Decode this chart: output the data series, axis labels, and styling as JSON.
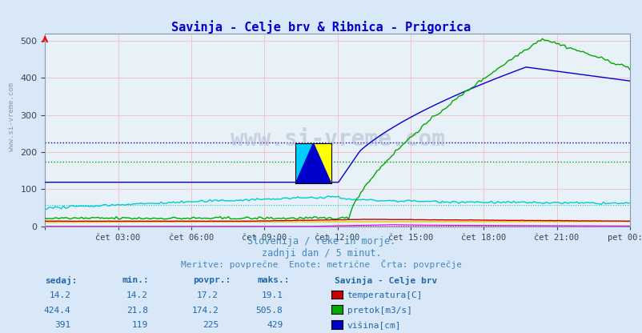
{
  "title": "Savinja - Celje brv & Ribnica - Prigorica",
  "title_color": "#0000cc",
  "bg_color": "#d8e8f8",
  "plot_bg_color": "#e8f0f8",
  "grid_color": "#ff9999",
  "xlabel_ticks": [
    "čet 03:00",
    "čet 06:00",
    "čet 09:00",
    "čet 12:00",
    "čet 15:00",
    "čet 18:00",
    "čet 21:00",
    "pet 00:00"
  ],
  "ylim": [
    0,
    520
  ],
  "yticks": [
    0,
    100,
    200,
    300,
    400,
    500
  ],
  "n_points": 288,
  "subtitle1": "Slovenija / reke in morje.",
  "subtitle2": "zadnji dan / 5 minut.",
  "subtitle3": "Meritve: povprečne  Enote: metrične  Črta: povprečje",
  "subtitle_color": "#4488bb",
  "table_header_color": "#2266aa",
  "table_val_color": "#2266aa",
  "station1_name": "Savinja - Celje brv",
  "station2_name": "Ribnica - Prigorica",
  "s1_temp_color": "#cc0000",
  "s1_flow_color": "#00aa00",
  "s1_level_color": "#0000cc",
  "s2_temp_color": "#ddcc00",
  "s2_flow_color": "#dd00dd",
  "s2_level_color": "#00cccc",
  "s1_temp_avg": 17.2,
  "s1_flow_avg": 174.2,
  "s1_level_avg": 225,
  "s2_temp_avg": 12.4,
  "s2_flow_avg": 1.4,
  "s2_level_avg": 59,
  "s1_temp_min": 14.2,
  "s1_temp_max": 19.1,
  "s1_temp_now": 14.2,
  "s1_flow_min": 21.8,
  "s1_flow_max": 505.8,
  "s1_flow_now": 424.4,
  "s1_level_min": 119,
  "s1_level_max": 429,
  "s1_level_now": 391,
  "s2_temp_min": 10.2,
  "s2_temp_max": 14.0,
  "s2_temp_now": 14.0,
  "s2_flow_min": 0.3,
  "s2_flow_max": 4.8,
  "s2_flow_now": 1.3,
  "s2_level_min": 48,
  "s2_level_max": 80,
  "s2_level_now": 62
}
